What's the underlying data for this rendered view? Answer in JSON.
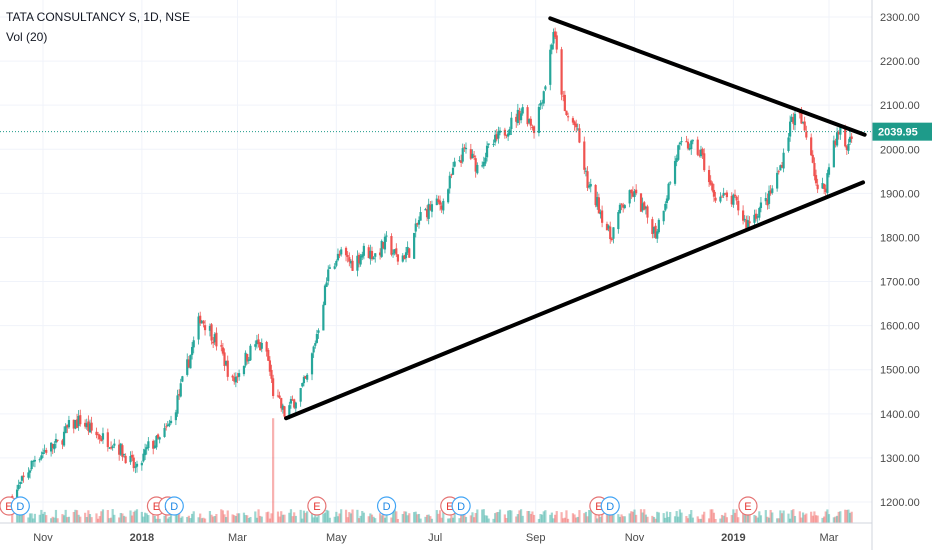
{
  "legend": {
    "title": "TATA CONSULTANCY S, 1D, NSE",
    "indicator": "Vol (20)"
  },
  "colors": {
    "up": "#26a69a",
    "down": "#ef5350",
    "grid": "#f0f3fa",
    "axis_text": "#4a4a4a",
    "price_line": "#1e9b8a",
    "trendline": "#000000"
  },
  "chart_data": {
    "type": "candlestick",
    "symbol": "TATA CONSULTANCY S",
    "interval": "1D",
    "exchange": "NSE",
    "indicator": "Vol (20)",
    "ylim": [
      1150,
      2320
    ],
    "y_ticks": [
      "1200.00",
      "1300.00",
      "1400.00",
      "1500.00",
      "1600.00",
      "1700.00",
      "1800.00",
      "1900.00",
      "2000.00",
      "2100.00",
      "2200.00",
      "2300.00"
    ],
    "x_ticks": [
      "Nov",
      "2018",
      "Mar",
      "May",
      "Jul",
      "Sep",
      "Nov",
      "2019",
      "Mar"
    ],
    "last_price": "2039.95",
    "close_path": [
      [
        "2017-10-13",
        1210
      ],
      [
        "2017-10-20",
        1250
      ],
      [
        "2017-10-27",
        1300
      ],
      [
        "2017-11-03",
        1320
      ],
      [
        "2017-11-10",
        1330
      ],
      [
        "2017-11-17",
        1370
      ],
      [
        "2017-11-24",
        1385
      ],
      [
        "2017-12-01",
        1360
      ],
      [
        "2017-12-08",
        1345
      ],
      [
        "2017-12-15",
        1335
      ],
      [
        "2017-12-22",
        1305
      ],
      [
        "2017-12-29",
        1270
      ],
      [
        "2018-01-05",
        1325
      ],
      [
        "2018-01-12",
        1340
      ],
      [
        "2018-01-19",
        1380
      ],
      [
        "2018-01-26",
        1470
      ],
      [
        "2018-02-02",
        1560
      ],
      [
        "2018-02-06",
        1620
      ],
      [
        "2018-02-12",
        1590
      ],
      [
        "2018-02-19",
        1540
      ],
      [
        "2018-02-26",
        1470
      ],
      [
        "2018-03-05",
        1520
      ],
      [
        "2018-03-12",
        1560
      ],
      [
        "2018-03-19",
        1540
      ],
      [
        "2018-03-23",
        1450
      ],
      [
        "2018-03-30",
        1400
      ],
      [
        "2018-04-06",
        1435
      ],
      [
        "2018-04-13",
        1480
      ],
      [
        "2018-04-20",
        1600
      ],
      [
        "2018-04-27",
        1740
      ],
      [
        "2018-05-04",
        1760
      ],
      [
        "2018-05-11",
        1740
      ],
      [
        "2018-05-18",
        1770
      ],
      [
        "2018-05-25",
        1760
      ],
      [
        "2018-06-01",
        1790
      ],
      [
        "2018-06-08",
        1750
      ],
      [
        "2018-06-15",
        1770
      ],
      [
        "2018-06-22",
        1850
      ],
      [
        "2018-06-29",
        1870
      ],
      [
        "2018-07-06",
        1880
      ],
      [
        "2018-07-13",
        1960
      ],
      [
        "2018-07-20",
        2000
      ],
      [
        "2018-07-27",
        1960
      ],
      [
        "2018-08-03",
        2000
      ],
      [
        "2018-08-10",
        2030
      ],
      [
        "2018-08-17",
        2060
      ],
      [
        "2018-08-24",
        2090
      ],
      [
        "2018-08-31",
        2050
      ],
      [
        "2018-09-07",
        2150
      ],
      [
        "2018-09-12",
        2270
      ],
      [
        "2018-09-19",
        2080
      ],
      [
        "2018-09-26",
        2050
      ],
      [
        "2018-10-03",
        1920
      ],
      [
        "2018-10-10",
        1870
      ],
      [
        "2018-10-17",
        1800
      ],
      [
        "2018-10-24",
        1870
      ],
      [
        "2018-10-31",
        1900
      ],
      [
        "2018-11-07",
        1860
      ],
      [
        "2018-11-14",
        1810
      ],
      [
        "2018-11-21",
        1900
      ],
      [
        "2018-11-28",
        2000
      ],
      [
        "2018-12-05",
        2010
      ],
      [
        "2018-12-12",
        1990
      ],
      [
        "2018-12-19",
        1900
      ],
      [
        "2018-12-26",
        1890
      ],
      [
        "2019-01-02",
        1880
      ],
      [
        "2019-01-09",
        1830
      ],
      [
        "2019-01-16",
        1860
      ],
      [
        "2019-01-23",
        1890
      ],
      [
        "2019-01-30",
        1960
      ],
      [
        "2019-02-06",
        2070
      ],
      [
        "2019-02-11",
        2070
      ],
      [
        "2019-02-18",
        2000
      ],
      [
        "2019-02-22",
        1900
      ],
      [
        "2019-02-27",
        1920
      ],
      [
        "2019-03-04",
        2020
      ],
      [
        "2019-03-08",
        2040
      ],
      [
        "2019-03-12",
        2000
      ],
      [
        "2019-03-15",
        2040
      ]
    ],
    "volume_spike": {
      "date": "2018-03-23",
      "relative": 1.0
    },
    "events": [
      {
        "label": "E",
        "date": "2017-10-11"
      },
      {
        "label": "D",
        "date": "2017-10-18"
      },
      {
        "label": "E",
        "date": "2018-01-10"
      },
      {
        "label": "E",
        "date": "2018-01-17"
      },
      {
        "label": "D",
        "date": "2018-01-21"
      },
      {
        "label": "E",
        "date": "2018-04-19"
      },
      {
        "label": "D",
        "date": "2018-06-01"
      },
      {
        "label": "E",
        "date": "2018-07-10"
      },
      {
        "label": "D",
        "date": "2018-07-17"
      },
      {
        "label": "E",
        "date": "2018-10-10"
      },
      {
        "label": "D",
        "date": "2018-10-17"
      },
      {
        "label": "E",
        "date": "2019-01-10"
      }
    ],
    "trendlines": [
      {
        "name": "upper",
        "from": {
          "date": "2018-09-10",
          "price": 2297
        },
        "to": {
          "date": "2019-03-23",
          "price": 2033
        }
      },
      {
        "name": "lower",
        "from": {
          "date": "2018-03-31",
          "price": 1390
        },
        "to": {
          "date": "2019-03-22",
          "price": 1925
        }
      }
    ]
  }
}
